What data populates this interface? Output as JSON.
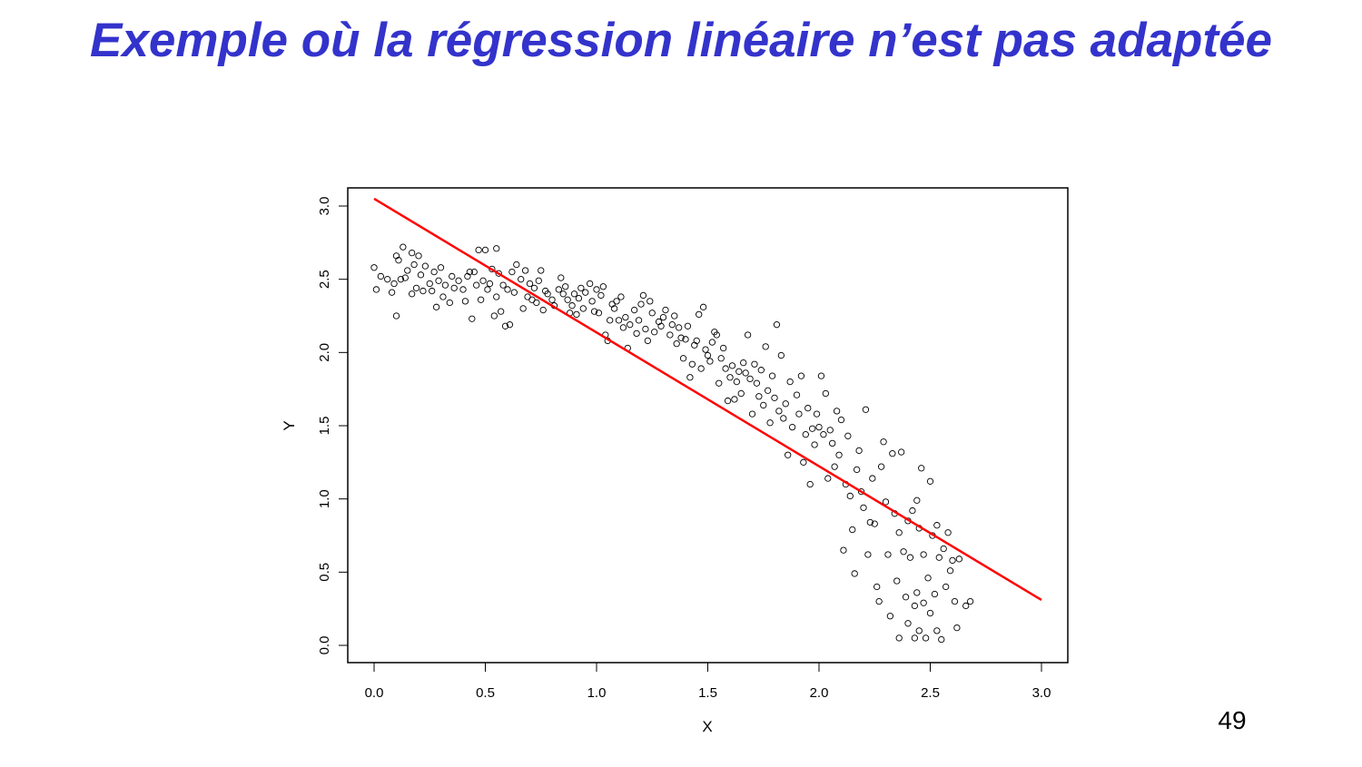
{
  "slide": {
    "title": "Exemple où la régression linéaire n’est pas adaptée",
    "title_color": "#3333cc",
    "page_number": "49"
  },
  "chart_data": {
    "type": "scatter",
    "title": "",
    "xlabel": "X",
    "ylabel": "Y",
    "xlim": [
      0.0,
      3.0
    ],
    "ylim": [
      0.0,
      3.0
    ],
    "x_ticks": [
      "0.0",
      "0.5",
      "1.0",
      "1.5",
      "2.0",
      "2.5",
      "3.0"
    ],
    "y_ticks": [
      "0.0",
      "0.5",
      "1.0",
      "1.5",
      "2.0",
      "2.5",
      "3.0"
    ],
    "grid": false,
    "legend": null,
    "marker": "open-circle",
    "marker_color": "#000000",
    "regression_line": {
      "color": "#ff0000",
      "x0": 0.0,
      "y0": 3.05,
      "x1": 3.0,
      "y1": 0.31
    },
    "points": [
      [
        0.0,
        2.58
      ],
      [
        0.01,
        2.43
      ],
      [
        0.03,
        2.52
      ],
      [
        0.06,
        2.5
      ],
      [
        0.08,
        2.41
      ],
      [
        0.09,
        2.47
      ],
      [
        0.1,
        2.66
      ],
      [
        0.1,
        2.25
      ],
      [
        0.11,
        2.63
      ],
      [
        0.12,
        2.5
      ],
      [
        0.13,
        2.72
      ],
      [
        0.14,
        2.51
      ],
      [
        0.15,
        2.56
      ],
      [
        0.17,
        2.68
      ],
      [
        0.17,
        2.4
      ],
      [
        0.18,
        2.6
      ],
      [
        0.19,
        2.44
      ],
      [
        0.2,
        2.66
      ],
      [
        0.21,
        2.53
      ],
      [
        0.22,
        2.42
      ],
      [
        0.23,
        2.59
      ],
      [
        0.25,
        2.47
      ],
      [
        0.26,
        2.42
      ],
      [
        0.27,
        2.55
      ],
      [
        0.28,
        2.31
      ],
      [
        0.29,
        2.49
      ],
      [
        0.3,
        2.58
      ],
      [
        0.31,
        2.38
      ],
      [
        0.32,
        2.46
      ],
      [
        0.34,
        2.34
      ],
      [
        0.35,
        2.52
      ],
      [
        0.36,
        2.44
      ],
      [
        0.38,
        2.49
      ],
      [
        0.4,
        2.43
      ],
      [
        0.41,
        2.35
      ],
      [
        0.42,
        2.52
      ],
      [
        0.43,
        2.55
      ],
      [
        0.44,
        2.23
      ],
      [
        0.45,
        2.55
      ],
      [
        0.46,
        2.46
      ],
      [
        0.47,
        2.7
      ],
      [
        0.48,
        2.36
      ],
      [
        0.49,
        2.49
      ],
      [
        0.5,
        2.7
      ],
      [
        0.51,
        2.43
      ],
      [
        0.52,
        2.47
      ],
      [
        0.53,
        2.57
      ],
      [
        0.54,
        2.25
      ],
      [
        0.55,
        2.71
      ],
      [
        0.55,
        2.38
      ],
      [
        0.56,
        2.54
      ],
      [
        0.57,
        2.28
      ],
      [
        0.58,
        2.46
      ],
      [
        0.59,
        2.18
      ],
      [
        0.6,
        2.43
      ],
      [
        0.61,
        2.19
      ],
      [
        0.62,
        2.55
      ],
      [
        0.63,
        2.41
      ],
      [
        0.64,
        2.6
      ],
      [
        0.66,
        2.5
      ],
      [
        0.67,
        2.3
      ],
      [
        0.68,
        2.56
      ],
      [
        0.69,
        2.38
      ],
      [
        0.7,
        2.47
      ],
      [
        0.71,
        2.36
      ],
      [
        0.72,
        2.44
      ],
      [
        0.73,
        2.34
      ],
      [
        0.74,
        2.49
      ],
      [
        0.75,
        2.56
      ],
      [
        0.76,
        2.29
      ],
      [
        0.77,
        2.42
      ],
      [
        0.78,
        2.4
      ],
      [
        0.8,
        2.36
      ],
      [
        0.81,
        2.32
      ],
      [
        0.83,
        2.43
      ],
      [
        0.84,
        2.51
      ],
      [
        0.85,
        2.4
      ],
      [
        0.86,
        2.45
      ],
      [
        0.87,
        2.36
      ],
      [
        0.88,
        2.27
      ],
      [
        0.89,
        2.32
      ],
      [
        0.9,
        2.4
      ],
      [
        0.91,
        2.26
      ],
      [
        0.92,
        2.37
      ],
      [
        0.93,
        2.44
      ],
      [
        0.94,
        2.3
      ],
      [
        0.95,
        2.41
      ],
      [
        0.97,
        2.47
      ],
      [
        0.98,
        2.35
      ],
      [
        0.99,
        2.28
      ],
      [
        1.0,
        2.43
      ],
      [
        1.01,
        2.27
      ],
      [
        1.02,
        2.39
      ],
      [
        1.03,
        2.45
      ],
      [
        1.04,
        2.12
      ],
      [
        1.05,
        2.08
      ],
      [
        1.06,
        2.22
      ],
      [
        1.07,
        2.33
      ],
      [
        1.08,
        2.3
      ],
      [
        1.09,
        2.35
      ],
      [
        1.1,
        2.22
      ],
      [
        1.11,
        2.38
      ],
      [
        1.12,
        2.17
      ],
      [
        1.13,
        2.24
      ],
      [
        1.14,
        2.03
      ],
      [
        1.15,
        2.19
      ],
      [
        1.17,
        2.29
      ],
      [
        1.18,
        2.13
      ],
      [
        1.19,
        2.22
      ],
      [
        1.2,
        2.33
      ],
      [
        1.21,
        2.39
      ],
      [
        1.22,
        2.16
      ],
      [
        1.23,
        2.08
      ],
      [
        1.24,
        2.35
      ],
      [
        1.25,
        2.27
      ],
      [
        1.26,
        2.14
      ],
      [
        1.28,
        2.21
      ],
      [
        1.29,
        2.18
      ],
      [
        1.3,
        2.24
      ],
      [
        1.31,
        2.29
      ],
      [
        1.33,
        2.12
      ],
      [
        1.34,
        2.19
      ],
      [
        1.35,
        2.25
      ],
      [
        1.36,
        2.06
      ],
      [
        1.37,
        2.17
      ],
      [
        1.38,
        2.1
      ],
      [
        1.39,
        1.96
      ],
      [
        1.4,
        2.09
      ],
      [
        1.41,
        2.18
      ],
      [
        1.42,
        1.83
      ],
      [
        1.43,
        1.92
      ],
      [
        1.44,
        2.05
      ],
      [
        1.45,
        2.08
      ],
      [
        1.46,
        2.26
      ],
      [
        1.47,
        1.89
      ],
      [
        1.48,
        2.31
      ],
      [
        1.49,
        2.02
      ],
      [
        1.5,
        1.98
      ],
      [
        1.51,
        1.94
      ],
      [
        1.52,
        2.07
      ],
      [
        1.53,
        2.14
      ],
      [
        1.54,
        2.12
      ],
      [
        1.55,
        1.79
      ],
      [
        1.56,
        1.96
      ],
      [
        1.57,
        2.03
      ],
      [
        1.58,
        1.89
      ],
      [
        1.59,
        1.67
      ],
      [
        1.6,
        1.83
      ],
      [
        1.61,
        1.91
      ],
      [
        1.62,
        1.68
      ],
      [
        1.63,
        1.8
      ],
      [
        1.64,
        1.87
      ],
      [
        1.65,
        1.72
      ],
      [
        1.66,
        1.93
      ],
      [
        1.67,
        1.86
      ],
      [
        1.68,
        2.12
      ],
      [
        1.69,
        1.82
      ],
      [
        1.7,
        1.58
      ],
      [
        1.71,
        1.92
      ],
      [
        1.72,
        1.79
      ],
      [
        1.73,
        1.7
      ],
      [
        1.74,
        1.88
      ],
      [
        1.75,
        1.64
      ],
      [
        1.76,
        2.04
      ],
      [
        1.77,
        1.74
      ],
      [
        1.78,
        1.52
      ],
      [
        1.79,
        1.84
      ],
      [
        1.8,
        1.69
      ],
      [
        1.81,
        2.19
      ],
      [
        1.82,
        1.6
      ],
      [
        1.83,
        1.98
      ],
      [
        1.84,
        1.55
      ],
      [
        1.85,
        1.65
      ],
      [
        1.86,
        1.3
      ],
      [
        1.87,
        1.8
      ],
      [
        1.88,
        1.49
      ],
      [
        1.9,
        1.71
      ],
      [
        1.91,
        1.58
      ],
      [
        1.92,
        1.84
      ],
      [
        1.93,
        1.25
      ],
      [
        1.94,
        1.44
      ],
      [
        1.95,
        1.62
      ],
      [
        1.96,
        1.1
      ],
      [
        1.97,
        1.48
      ],
      [
        1.98,
        1.37
      ],
      [
        1.99,
        1.58
      ],
      [
        2.0,
        1.49
      ],
      [
        2.01,
        1.84
      ],
      [
        2.02,
        1.44
      ],
      [
        2.03,
        1.72
      ],
      [
        2.04,
        1.14
      ],
      [
        2.05,
        1.47
      ],
      [
        2.06,
        1.38
      ],
      [
        2.07,
        1.22
      ],
      [
        2.08,
        1.6
      ],
      [
        2.09,
        1.3
      ],
      [
        2.1,
        1.54
      ],
      [
        2.11,
        0.65
      ],
      [
        2.12,
        1.1
      ],
      [
        2.13,
        1.43
      ],
      [
        2.14,
        1.02
      ],
      [
        2.15,
        0.79
      ],
      [
        2.16,
        0.49
      ],
      [
        2.17,
        1.2
      ],
      [
        2.18,
        1.33
      ],
      [
        2.19,
        1.05
      ],
      [
        2.2,
        0.94
      ],
      [
        2.21,
        1.61
      ],
      [
        2.22,
        0.62
      ],
      [
        2.23,
        0.84
      ],
      [
        2.24,
        1.14
      ],
      [
        2.25,
        0.83
      ],
      [
        2.26,
        0.4
      ],
      [
        2.27,
        0.3
      ],
      [
        2.28,
        1.22
      ],
      [
        2.29,
        1.39
      ],
      [
        2.3,
        0.98
      ],
      [
        2.31,
        0.62
      ],
      [
        2.32,
        0.2
      ],
      [
        2.33,
        1.31
      ],
      [
        2.34,
        0.9
      ],
      [
        2.35,
        0.44
      ],
      [
        2.36,
        0.77
      ],
      [
        2.36,
        0.05
      ],
      [
        2.37,
        1.32
      ],
      [
        2.38,
        0.64
      ],
      [
        2.39,
        0.33
      ],
      [
        2.4,
        0.85
      ],
      [
        2.4,
        0.15
      ],
      [
        2.41,
        0.6
      ],
      [
        2.42,
        0.92
      ],
      [
        2.43,
        0.27
      ],
      [
        2.43,
        0.05
      ],
      [
        2.44,
        0.99
      ],
      [
        2.44,
        0.36
      ],
      [
        2.45,
        0.8
      ],
      [
        2.45,
        0.1
      ],
      [
        2.46,
        1.21
      ],
      [
        2.47,
        0.62
      ],
      [
        2.47,
        0.29
      ],
      [
        2.48,
        0.05
      ],
      [
        2.49,
        0.46
      ],
      [
        2.5,
        1.12
      ],
      [
        2.5,
        0.22
      ],
      [
        2.51,
        0.75
      ],
      [
        2.52,
        0.35
      ],
      [
        2.53,
        0.82
      ],
      [
        2.53,
        0.1
      ],
      [
        2.54,
        0.6
      ],
      [
        2.55,
        0.04
      ],
      [
        2.56,
        0.66
      ],
      [
        2.57,
        0.4
      ],
      [
        2.58,
        0.77
      ],
      [
        2.59,
        0.51
      ],
      [
        2.6,
        0.58
      ],
      [
        2.61,
        0.3
      ],
      [
        2.62,
        0.12
      ],
      [
        2.63,
        0.59
      ],
      [
        2.66,
        0.27
      ],
      [
        2.68,
        0.3
      ]
    ]
  }
}
